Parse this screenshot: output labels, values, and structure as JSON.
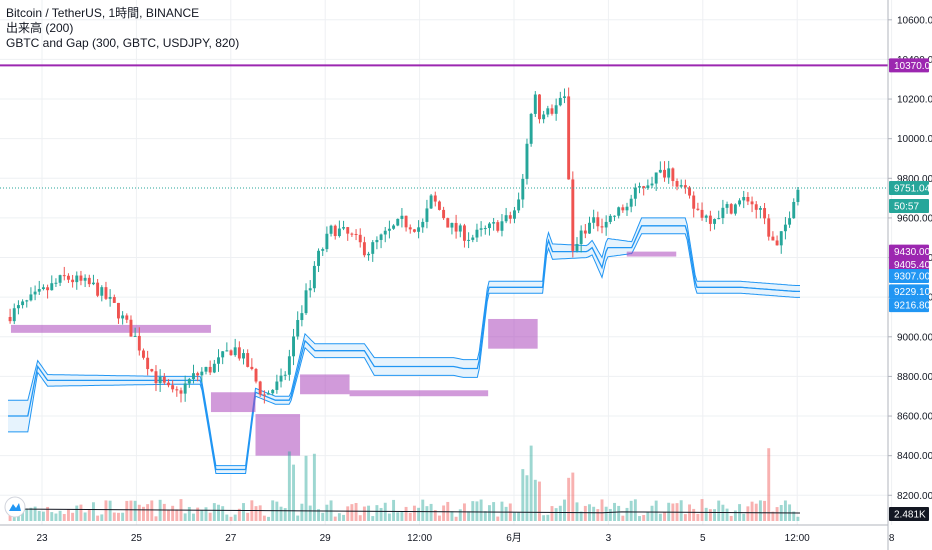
{
  "legend": {
    "symbol_line": "Bitcoin / TetherUS, 1時間, BINANCE",
    "volume_line": "出来高 (200)",
    "indicator_line": "GBTC and Gap (300, GBTC, USDJPY, 820)"
  },
  "colors": {
    "up": "#26a69a",
    "down": "#ef5350",
    "band": "#2196f3",
    "band_fill": "#e3f2fd",
    "gap": "#ab47bc",
    "hline": "#9c27b0",
    "grid": "#eef0f3",
    "price_line": "#26a69a"
  },
  "chart_data": {
    "type": "candlestick",
    "title": "Bitcoin / TetherUS, 1時間, BINANCE",
    "ylim": [
      8050,
      10700
    ],
    "y_ticks": [
      "10600.00",
      "10400.00",
      "10200.00",
      "10000.00",
      "9800.00",
      "9600.00",
      "9400.00",
      "9200.00",
      "9000.00",
      "8800.00",
      "8600.00",
      "8400.00",
      "8200.00"
    ],
    "x_ticks": [
      "23",
      "25",
      "27",
      "29",
      "12:00",
      "6月",
      "3",
      "5",
      "12:00",
      "8"
    ],
    "price_tags": [
      {
        "label": "10370.00",
        "price": 10370,
        "color": "#9c27b0"
      },
      {
        "label": "9751.04",
        "price": 9751,
        "color": "#26a69a"
      },
      {
        "label": "50:57",
        "price": 9660,
        "color": "#26a69a"
      },
      {
        "label": "9430.00",
        "price": 9430,
        "color": "#9c27b0"
      },
      {
        "label": "9405.40",
        "price": 9366,
        "color": "#9c27b0"
      },
      {
        "label": "9307.00",
        "price": 9307,
        "color": "#2196f3"
      },
      {
        "label": "9229.10",
        "price": 9229,
        "color": "#2196f3"
      },
      {
        "label": "9216.80",
        "price": 9160,
        "color": "#2196f3"
      }
    ],
    "volume_tag": "2.481K",
    "horizontal_line": 10370,
    "close_path": [
      [
        0,
        9100
      ],
      [
        3,
        9200
      ],
      [
        6,
        9300
      ],
      [
        9,
        9250
      ],
      [
        11,
        9150
      ],
      [
        13,
        9000
      ],
      [
        15,
        8800
      ],
      [
        17,
        8700
      ],
      [
        19,
        8800
      ],
      [
        21,
        8850
      ],
      [
        23,
        8950
      ],
      [
        24.5,
        8850
      ],
      [
        26,
        8700
      ],
      [
        28,
        8780
      ],
      [
        30,
        9150
      ],
      [
        31.5,
        9400
      ],
      [
        33,
        9550
      ],
      [
        35,
        9500
      ],
      [
        36.5,
        9430
      ],
      [
        38,
        9500
      ],
      [
        40,
        9580
      ],
      [
        42,
        9550
      ],
      [
        43,
        9700
      ],
      [
        45,
        9550
      ],
      [
        47,
        9500
      ],
      [
        49,
        9550
      ],
      [
        51,
        9600
      ],
      [
        52,
        9700
      ],
      [
        53.3,
        10250
      ],
      [
        54,
        10100
      ],
      [
        56.5,
        10200
      ],
      [
        57.2,
        9400
      ],
      [
        58.3,
        9550
      ],
      [
        61,
        9600
      ],
      [
        62.5,
        9650
      ],
      [
        64,
        9750
      ],
      [
        65.3,
        9800
      ],
      [
        67,
        9850
      ],
      [
        69.5,
        9650
      ],
      [
        71,
        9600
      ],
      [
        73,
        9650
      ],
      [
        75,
        9700
      ],
      [
        76.5,
        9600
      ],
      [
        77.8,
        9430
      ],
      [
        79,
        9600
      ],
      [
        79.8,
        9751
      ]
    ],
    "band": {
      "center": [
        [
          0,
          8600
        ],
        [
          2,
          8600
        ],
        [
          3,
          8850
        ],
        [
          4,
          8780
        ],
        [
          16,
          8780
        ],
        [
          19.5,
          8780
        ],
        [
          21,
          8330
        ],
        [
          24,
          8330
        ],
        [
          25,
          8720
        ],
        [
          27,
          8680
        ],
        [
          28.5,
          8680
        ],
        [
          30,
          8980
        ],
        [
          31,
          8930
        ],
        [
          36,
          8930
        ],
        [
          37,
          8850
        ],
        [
          45,
          8850
        ],
        [
          46,
          8840
        ],
        [
          47.5,
          8840
        ],
        [
          48.5,
          9250
        ],
        [
          52.5,
          9250
        ],
        [
          53,
          9250
        ],
        [
          54,
          9250
        ],
        [
          54.5,
          9500
        ],
        [
          55,
          9430
        ],
        [
          58.5,
          9430
        ],
        [
          59,
          9450
        ],
        [
          60,
          9350
        ],
        [
          60.5,
          9450
        ],
        [
          63,
          9450
        ],
        [
          64,
          9560
        ],
        [
          67,
          9560
        ],
        [
          68.5,
          9560
        ],
        [
          69.5,
          9250
        ],
        [
          74,
          9250
        ],
        [
          79.5,
          9229
        ]
      ],
      "width": [
        [
          0,
          160
        ],
        [
          2,
          160
        ],
        [
          3,
          60
        ],
        [
          16,
          40
        ],
        [
          19.5,
          40
        ],
        [
          21,
          40
        ],
        [
          24,
          40
        ],
        [
          25,
          40
        ],
        [
          28.5,
          40
        ],
        [
          30,
          70
        ],
        [
          36,
          70
        ],
        [
          37,
          90
        ],
        [
          47.5,
          90
        ],
        [
          48.5,
          60
        ],
        [
          54,
          60
        ],
        [
          54.5,
          80
        ],
        [
          58.5,
          60
        ],
        [
          60,
          100
        ],
        [
          63,
          60
        ],
        [
          64,
          80
        ],
        [
          68.5,
          80
        ],
        [
          69.5,
          60
        ],
        [
          79.5,
          60
        ]
      ]
    },
    "gaps": [
      {
        "x0": 0.3,
        "x1": 20.5,
        "y0": 9060,
        "y1": 9020
      },
      {
        "x0": 20.5,
        "x1": 25,
        "y0": 8720,
        "y1": 8620
      },
      {
        "x0": 25,
        "x1": 29.5,
        "y0": 8610,
        "y1": 8400
      },
      {
        "x0": 29.5,
        "x1": 34.5,
        "y0": 8810,
        "y1": 8710
      },
      {
        "x0": 34.5,
        "x1": 48.5,
        "y0": 8730,
        "y1": 8700
      },
      {
        "x0": 48.5,
        "x1": 53.5,
        "y0": 9090,
        "y1": 8940
      },
      {
        "x0": 62.5,
        "x1": 67.5,
        "y0": 9430,
        "y1": 9405
      }
    ]
  }
}
